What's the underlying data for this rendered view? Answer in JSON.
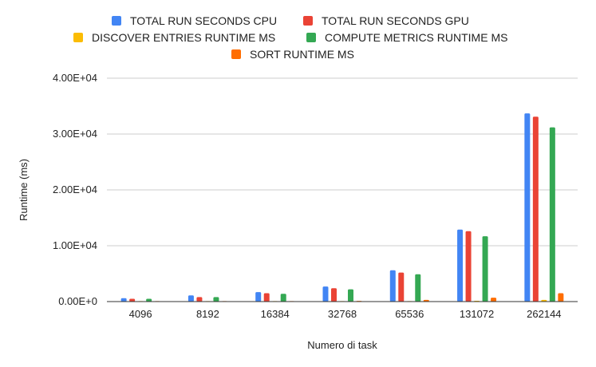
{
  "chart_data": {
    "type": "bar",
    "title": "",
    "xlabel": "Numero di task",
    "ylabel": "Runtime (ms)",
    "ylim": [
      0,
      40000
    ],
    "y_ticks": [
      0,
      10000,
      20000,
      30000,
      40000
    ],
    "y_tick_labels": [
      "0.00E+0",
      "1.00E+04",
      "2.00E+04",
      "3.00E+04",
      "4.00E+04"
    ],
    "grid": true,
    "legend_position": "top",
    "categories": [
      "4096",
      "8192",
      "16384",
      "32768",
      "65536",
      "131072",
      "262144"
    ],
    "series": [
      {
        "name": "TOTAL RUN SECONDS CPU",
        "color": "#4285f4",
        "values": [
          600,
          1100,
          1700,
          2700,
          5600,
          12900,
          33700
        ]
      },
      {
        "name": "TOTAL RUN SECONDS GPU",
        "color": "#ea4335",
        "values": [
          500,
          800,
          1500,
          2400,
          5200,
          12600,
          33100
        ]
      },
      {
        "name": "DISCOVER ENTRIES RUNTIME MS",
        "color": "#fbbc04",
        "values": [
          5,
          10,
          20,
          40,
          80,
          150,
          300
        ]
      },
      {
        "name": "COMPUTE METRICS RUNTIME MS",
        "color": "#34a853",
        "values": [
          500,
          800,
          1400,
          2200,
          4900,
          11700,
          31200
        ]
      },
      {
        "name": "SORT RUNTIME MS",
        "color": "#ff6d01",
        "values": [
          30,
          50,
          80,
          120,
          300,
          700,
          1500
        ]
      }
    ]
  }
}
